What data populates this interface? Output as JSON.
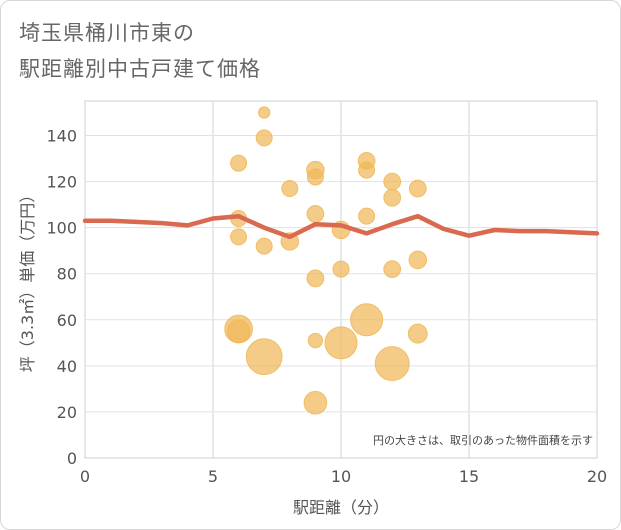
{
  "title_line1": "埼玉県桶川市東の",
  "title_line2": "駅距離別中古戸建て価格",
  "chart_data": {
    "type": "scatter",
    "title": "埼玉県桶川市東の駅距離別中古戸建て価格",
    "xlabel": "駅距離（分）",
    "ylabel": "坪（3.3㎡）単価（万円）",
    "xlim": [
      0,
      20
    ],
    "ylim": [
      0,
      155
    ],
    "xticks": [
      0,
      5,
      10,
      15,
      20
    ],
    "yticks": [
      0,
      20,
      40,
      60,
      80,
      100,
      120,
      140
    ],
    "grid": true,
    "annotation": "円の大きさは、取引のあった物件面積を示す",
    "bubble_color": "#f0b95a",
    "trend_color": "#d9694f",
    "bubbles": [
      {
        "x": 6,
        "y": 128,
        "size": 1
      },
      {
        "x": 6,
        "y": 104,
        "size": 1
      },
      {
        "x": 6,
        "y": 96,
        "size": 1
      },
      {
        "x": 6,
        "y": 56,
        "size": 3
      },
      {
        "x": 6,
        "y": 55,
        "size": 2
      },
      {
        "x": 7,
        "y": 150,
        "size": 0.5
      },
      {
        "x": 7,
        "y": 139,
        "size": 1
      },
      {
        "x": 7,
        "y": 92,
        "size": 1
      },
      {
        "x": 7,
        "y": 44,
        "size": 5
      },
      {
        "x": 8,
        "y": 117,
        "size": 1
      },
      {
        "x": 8,
        "y": 94,
        "size": 1.2
      },
      {
        "x": 9,
        "y": 125,
        "size": 1.2
      },
      {
        "x": 9,
        "y": 122,
        "size": 1
      },
      {
        "x": 9,
        "y": 106,
        "size": 1.1
      },
      {
        "x": 9,
        "y": 78,
        "size": 1.1
      },
      {
        "x": 9,
        "y": 51,
        "size": 0.8
      },
      {
        "x": 9,
        "y": 24,
        "size": 2
      },
      {
        "x": 10,
        "y": 99,
        "size": 1.2
      },
      {
        "x": 10,
        "y": 82,
        "size": 1
      },
      {
        "x": 10,
        "y": 50,
        "size": 4
      },
      {
        "x": 11,
        "y": 129,
        "size": 1.1
      },
      {
        "x": 11,
        "y": 125,
        "size": 1
      },
      {
        "x": 11,
        "y": 105,
        "size": 1
      },
      {
        "x": 11,
        "y": 60,
        "size": 4
      },
      {
        "x": 12,
        "y": 120,
        "size": 1.1
      },
      {
        "x": 12,
        "y": 113,
        "size": 1.1
      },
      {
        "x": 12,
        "y": 82,
        "size": 1.1
      },
      {
        "x": 12,
        "y": 41,
        "size": 4.5
      },
      {
        "x": 13,
        "y": 117,
        "size": 1.1
      },
      {
        "x": 13,
        "y": 86,
        "size": 1.2
      },
      {
        "x": 13,
        "y": 54,
        "size": 1.4
      }
    ],
    "trend_line": {
      "x": [
        0,
        1,
        2,
        3,
        4,
        5,
        6,
        7,
        8,
        9,
        10,
        11,
        12,
        13,
        14,
        15,
        16,
        17,
        18,
        19,
        20
      ],
      "y": [
        103,
        103,
        102.5,
        102,
        101,
        104,
        105,
        100,
        96,
        101.5,
        101,
        97.5,
        101.5,
        105,
        99.5,
        96.5,
        99,
        98.5,
        98.5,
        98,
        97.5
      ]
    }
  }
}
